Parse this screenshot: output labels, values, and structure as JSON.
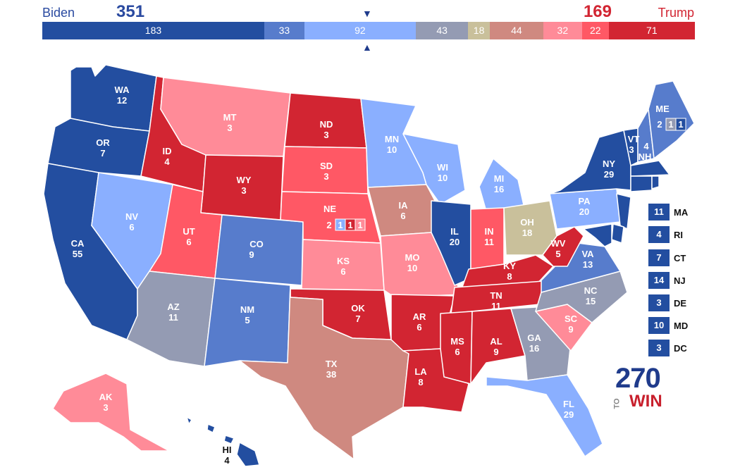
{
  "header": {
    "left_candidate": "Biden",
    "left_ev": "351",
    "right_candidate": "Trump",
    "right_ev": "169",
    "marker": "▼",
    "marker_up": "▲",
    "segments": [
      {
        "label": "183",
        "value": 183,
        "color": "#234ea0"
      },
      {
        "label": "33",
        "value": 33,
        "color": "#577ccc"
      },
      {
        "label": "92",
        "value": 92,
        "color": "#8aafff"
      },
      {
        "label": "43",
        "value": 43,
        "color": "#949bb3"
      },
      {
        "label": "18",
        "value": 18,
        "color": "#c9c09b"
      },
      {
        "label": "44",
        "value": 44,
        "color": "#cf8980"
      },
      {
        "label": "32",
        "value": 32,
        "color": "#ff8b98"
      },
      {
        "label": "22",
        "value": 22,
        "color": "#ff5865"
      },
      {
        "label": "71",
        "value": 71,
        "color": "#d22532"
      }
    ]
  },
  "colors": {
    "safe_d": "#234ea0",
    "likely_d": "#577ccc",
    "lean_d": "#8aafff",
    "tossup": "#949bb3",
    "tilt_r": "#c9c09b",
    "likely_r_light": "#cf8980",
    "lean_r": "#ff8b98",
    "likely_r": "#ff5865",
    "safe_r": "#d22532"
  },
  "states": {
    "WA": {
      "abbr": "WA",
      "ev": "12"
    },
    "OR": {
      "abbr": "OR",
      "ev": "7"
    },
    "CA": {
      "abbr": "CA",
      "ev": "55"
    },
    "ID": {
      "abbr": "ID",
      "ev": "4"
    },
    "NV": {
      "abbr": "NV",
      "ev": "6"
    },
    "MT": {
      "abbr": "MT",
      "ev": "3"
    },
    "WY": {
      "abbr": "WY",
      "ev": "3"
    },
    "UT": {
      "abbr": "UT",
      "ev": "6"
    },
    "AZ": {
      "abbr": "AZ",
      "ev": "11"
    },
    "CO": {
      "abbr": "CO",
      "ev": "9"
    },
    "NM": {
      "abbr": "NM",
      "ev": "5"
    },
    "ND": {
      "abbr": "ND",
      "ev": "3"
    },
    "SD": {
      "abbr": "SD",
      "ev": "3"
    },
    "NE": {
      "abbr": "NE",
      "ev": "2"
    },
    "KS": {
      "abbr": "KS",
      "ev": "6"
    },
    "OK": {
      "abbr": "OK",
      "ev": "7"
    },
    "TX": {
      "abbr": "TX",
      "ev": "38"
    },
    "MN": {
      "abbr": "MN",
      "ev": "10"
    },
    "IA": {
      "abbr": "IA",
      "ev": "6"
    },
    "MO": {
      "abbr": "MO",
      "ev": "10"
    },
    "AR": {
      "abbr": "AR",
      "ev": "6"
    },
    "LA": {
      "abbr": "LA",
      "ev": "8"
    },
    "WI": {
      "abbr": "WI",
      "ev": "10"
    },
    "IL": {
      "abbr": "IL",
      "ev": "20"
    },
    "MI": {
      "abbr": "MI",
      "ev": "16"
    },
    "IN": {
      "abbr": "IN",
      "ev": "11"
    },
    "OH": {
      "abbr": "OH",
      "ev": "18"
    },
    "KY": {
      "abbr": "KY",
      "ev": "8"
    },
    "TN": {
      "abbr": "TN",
      "ev": "11"
    },
    "MS": {
      "abbr": "MS",
      "ev": "6"
    },
    "AL": {
      "abbr": "AL",
      "ev": "9"
    },
    "GA": {
      "abbr": "GA",
      "ev": "16"
    },
    "FL": {
      "abbr": "FL",
      "ev": "29"
    },
    "SC": {
      "abbr": "SC",
      "ev": "9"
    },
    "NC": {
      "abbr": "NC",
      "ev": "15"
    },
    "VA": {
      "abbr": "VA",
      "ev": "13"
    },
    "WV": {
      "abbr": "WV",
      "ev": "5"
    },
    "PA": {
      "abbr": "PA",
      "ev": "20"
    },
    "NY": {
      "abbr": "NY",
      "ev": "29"
    },
    "VT": {
      "abbr": "VT",
      "ev": "3"
    },
    "NH": {
      "abbr": "NH",
      "ev": "4"
    },
    "ME": {
      "abbr": "ME",
      "ev": "2"
    },
    "AK": {
      "abbr": "AK",
      "ev": "3"
    },
    "HI": {
      "abbr": "HI",
      "ev": "4"
    }
  },
  "district_boxes": {
    "ne": [
      "1",
      "1",
      "1"
    ],
    "me": [
      "1",
      "1"
    ]
  },
  "small_states": [
    {
      "ev": "11",
      "abbr": "MA"
    },
    {
      "ev": "4",
      "abbr": "RI"
    },
    {
      "ev": "7",
      "abbr": "CT"
    },
    {
      "ev": "14",
      "abbr": "NJ"
    },
    {
      "ev": "3",
      "abbr": "DE"
    },
    {
      "ev": "10",
      "abbr": "MD"
    },
    {
      "ev": "3",
      "abbr": "DC"
    }
  ],
  "logo": {
    "number": "270",
    "to": "TO",
    "win": "WIN"
  }
}
